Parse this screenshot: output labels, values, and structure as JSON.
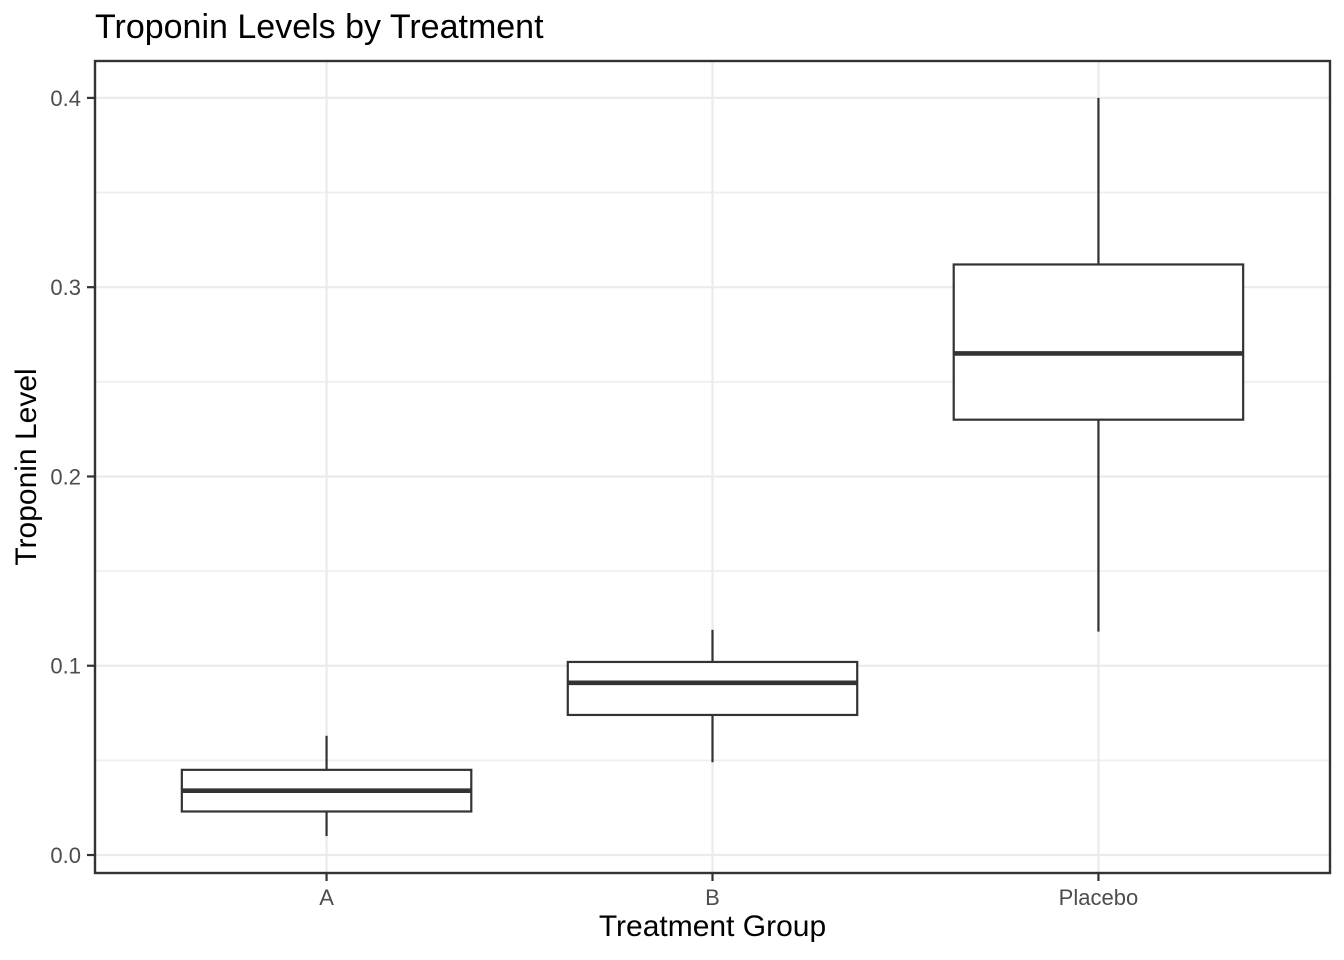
{
  "chart_data": {
    "type": "box",
    "title": "Troponin Levels by Treatment",
    "xlabel": "Treatment Group",
    "ylabel": "Troponin Level",
    "categories": [
      "A",
      "B",
      "Placebo"
    ],
    "boxes": [
      {
        "category": "A",
        "min": 0.01,
        "q1": 0.023,
        "median": 0.034,
        "q3": 0.045,
        "max": 0.063
      },
      {
        "category": "B",
        "min": 0.049,
        "q1": 0.074,
        "median": 0.091,
        "q3": 0.102,
        "max": 0.119
      },
      {
        "category": "Placebo",
        "min": 0.118,
        "q1": 0.23,
        "median": 0.265,
        "q3": 0.312,
        "max": 0.4
      }
    ],
    "ylim": [
      -0.0095,
      0.4195
    ],
    "yticks": [
      0.0,
      0.1,
      0.2,
      0.3,
      0.4
    ],
    "ytick_labels": [
      "0.0",
      "0.1",
      "0.2",
      "0.3",
      "0.4"
    ],
    "yminor_ticks": [
      0.05,
      0.15,
      0.25,
      0.35
    ],
    "grid": true,
    "legend": "none",
    "colors": {
      "background": "#FFFFFF",
      "panel_fill": "#FFFFFF",
      "grid_major": "#EBEBEB",
      "grid_minor": "#EFEFEF",
      "frame": "#333333",
      "box_stroke": "#333333",
      "box_fill": "#FFFFFF",
      "tick_mark": "#333333",
      "tick_text": "#4D4D4D",
      "title_text": "#000000"
    }
  }
}
